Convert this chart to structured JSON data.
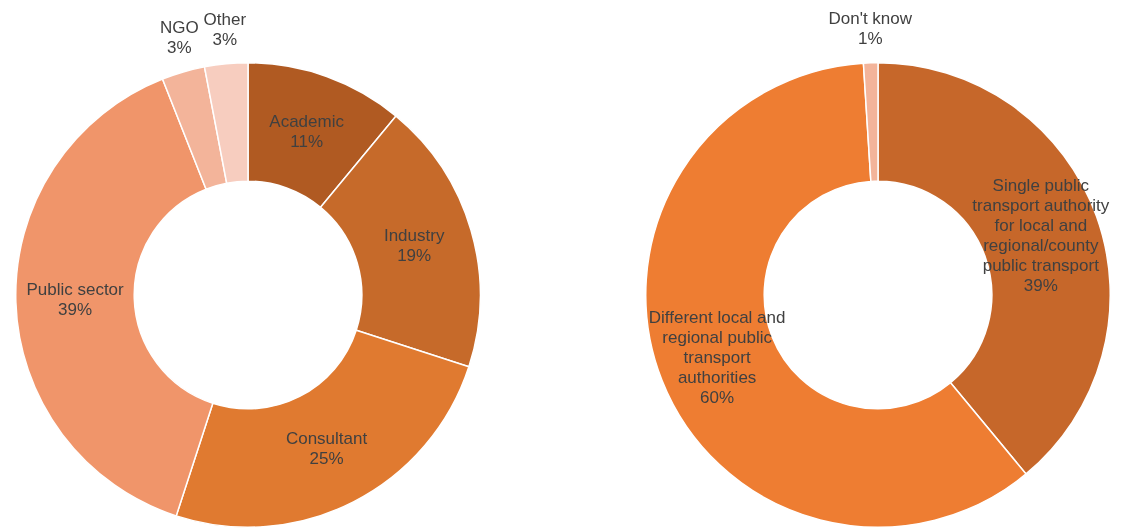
{
  "chart_data": [
    {
      "type": "donut",
      "categories": [
        "Academic",
        "Industry",
        "Consultant",
        "Public sector",
        "NGO",
        "Other"
      ],
      "values": [
        11,
        19,
        25,
        39,
        3,
        3
      ],
      "colors": [
        "#b05a22",
        "#c66a2a",
        "#e07a30",
        "#f0956a",
        "#f3b49a",
        "#f7cdbf"
      ],
      "value_labels": [
        "11%",
        "19%",
        "25%",
        "39%",
        "3%",
        "3%"
      ]
    },
    {
      "type": "donut",
      "categories": [
        "Single public transport authority for local and regional/county public transport",
        "Different local and regional public transport authorities",
        "Don't know"
      ],
      "values": [
        39,
        60,
        1
      ],
      "colors": [
        "#c6672a",
        "#ee7d32",
        "#f3b49a"
      ],
      "value_labels": [
        "39%",
        "60%",
        "1%"
      ]
    }
  ]
}
